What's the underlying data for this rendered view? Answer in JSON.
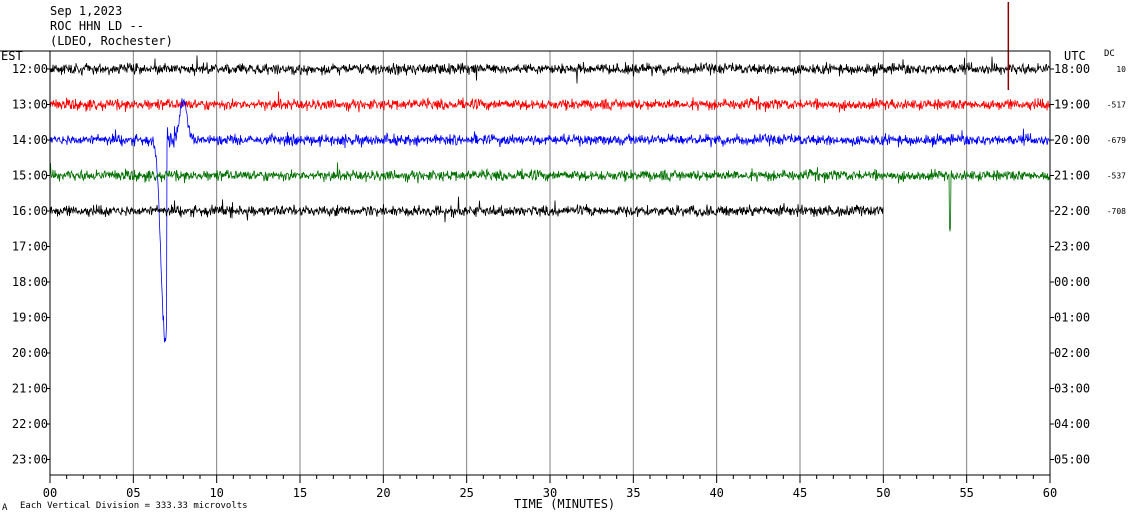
{
  "header": {
    "date": "Sep 1,2023",
    "station": "ROC HHN LD --",
    "network": "(LDEO, Rochester)"
  },
  "left_axis": {
    "label": "EST"
  },
  "right_axis": {
    "label": "UTC",
    "dc_label": "DC"
  },
  "footer": {
    "note": "Each Vertical Division =  333.33 microvolts",
    "corner_mark": "A"
  },
  "colors": {
    "black": "#000000",
    "red": "#ff0000",
    "blue": "#0000ff",
    "green": "#007000",
    "grid": "#000000",
    "event_marker": "#8b0000"
  },
  "chart_data": {
    "type": "line",
    "title": "",
    "xlabel": "TIME (MINUTES)",
    "ylabel": "",
    "xlim": [
      0,
      60
    ],
    "x_ticks": [
      "00",
      "05",
      "10",
      "15",
      "20",
      "25",
      "30",
      "35",
      "40",
      "45",
      "50",
      "55",
      "60"
    ],
    "rows_est": [
      "12:00",
      "13:00",
      "14:00",
      "15:00",
      "16:00",
      "17:00",
      "18:00",
      "19:00",
      "20:00",
      "21:00",
      "22:00",
      "23:00"
    ],
    "rows_utc": [
      "18:00",
      "19:00",
      "20:00",
      "21:00",
      "22:00",
      "23:00",
      "00:00",
      "01:00",
      "02:00",
      "03:00",
      "04:00",
      "05:00"
    ],
    "dc_offsets": [
      "10",
      "-517",
      "-679",
      "-537",
      "-708"
    ],
    "traces": [
      {
        "row": 0,
        "color": "black",
        "end_minute": 60
      },
      {
        "row": 1,
        "color": "red",
        "end_minute": 60
      },
      {
        "row": 2,
        "color": "blue",
        "end_minute": 60
      },
      {
        "row": 3,
        "color": "green",
        "end_minute": 60
      },
      {
        "row": 4,
        "color": "black",
        "end_minute": 50
      }
    ],
    "events": [
      {
        "minute": 7,
        "row": 2,
        "type": "large-excursion"
      },
      {
        "minute": 54,
        "row": 3,
        "type": "spike"
      }
    ]
  }
}
